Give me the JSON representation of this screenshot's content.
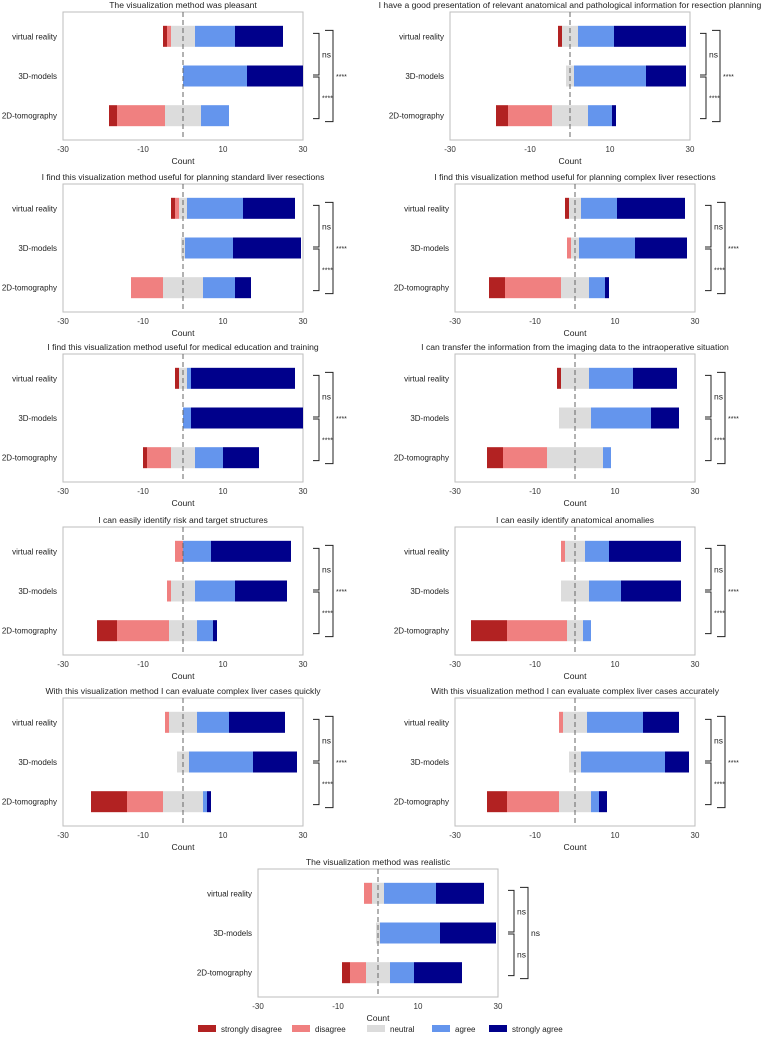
{
  "colors": {
    "strongly_disagree": "#b22222",
    "disagree": "#f08080",
    "neutral": "#dcdcdc",
    "agree": "#6495ed",
    "strongly_agree": "#00008b"
  },
  "legend": [
    {
      "key": "strongly_disagree",
      "label": "strongly disagree"
    },
    {
      "key": "disagree",
      "label": "disagree"
    },
    {
      "key": "neutral",
      "label": "neutral"
    },
    {
      "key": "agree",
      "label": "agree"
    },
    {
      "key": "strongly_agree",
      "label": "strongly agree"
    }
  ],
  "chart_data": [
    {
      "type": "bar",
      "stacked": "diverging",
      "orientation": "horizontal",
      "title": "The visualization method was pleasant",
      "xlabel": "Count",
      "xlim": [
        -30,
        30
      ],
      "xticks": [
        "-30",
        "-10",
        "10",
        "30"
      ],
      "categories": [
        "virtual reality",
        "3D-models",
        "2D-tomography"
      ],
      "series": [
        {
          "name": "strongly disagree",
          "values": [
            1,
            0,
            2
          ]
        },
        {
          "name": "disagree",
          "values": [
            1,
            0,
            12
          ]
        },
        {
          "name": "neutral",
          "values": [
            6,
            0,
            9
          ]
        },
        {
          "name": "agree",
          "values": [
            10,
            16,
            7
          ]
        },
        {
          "name": "strongly agree",
          "values": [
            12,
            14,
            0
          ]
        }
      ],
      "significance": [
        {
          "between": [
            "virtual reality",
            "3D-models"
          ],
          "label": "ns"
        },
        {
          "between": [
            "3D-models",
            "2D-tomography"
          ],
          "label": "****"
        },
        {
          "between": [
            "virtual reality",
            "2D-tomography"
          ],
          "label": "****"
        }
      ]
    },
    {
      "type": "bar",
      "stacked": "diverging",
      "orientation": "horizontal",
      "title": "I have a good presentation of relevant anatomical and pathological information for resection planning",
      "xlabel": "Count",
      "xlim": [
        -30,
        30
      ],
      "xticks": [
        "-30",
        "-10",
        "10",
        "30"
      ],
      "categories": [
        "virtual reality",
        "3D-models",
        "2D-tomography"
      ],
      "series": [
        {
          "name": "strongly disagree",
          "values": [
            1,
            0,
            3
          ]
        },
        {
          "name": "disagree",
          "values": [
            0,
            0,
            11
          ]
        },
        {
          "name": "neutral",
          "values": [
            4,
            2,
            9
          ]
        },
        {
          "name": "agree",
          "values": [
            9,
            18,
            6
          ]
        },
        {
          "name": "strongly agree",
          "values": [
            18,
            10,
            1
          ]
        }
      ],
      "significance": [
        {
          "between": [
            "virtual reality",
            "3D-models"
          ],
          "label": "ns"
        },
        {
          "between": [
            "3D-models",
            "2D-tomography"
          ],
          "label": "****"
        },
        {
          "between": [
            "virtual reality",
            "2D-tomography"
          ],
          "label": "****"
        }
      ]
    },
    {
      "type": "bar",
      "stacked": "diverging",
      "orientation": "horizontal",
      "title": "I find this visualization method useful for planning standard liver resections",
      "xlabel": "Count",
      "xlim": [
        -30,
        30
      ],
      "xticks": [
        "-30",
        "-10",
        "10",
        "30"
      ],
      "categories": [
        "virtual reality",
        "3D-models",
        "2D-tomography"
      ],
      "series": [
        {
          "name": "strongly disagree",
          "values": [
            1,
            0,
            0
          ]
        },
        {
          "name": "disagree",
          "values": [
            1,
            0,
            8
          ]
        },
        {
          "name": "neutral",
          "values": [
            2,
            1,
            10
          ]
        },
        {
          "name": "agree",
          "values": [
            14,
            12,
            8
          ]
        },
        {
          "name": "strongly agree",
          "values": [
            13,
            17,
            4
          ]
        }
      ],
      "significance": [
        {
          "between": [
            "virtual reality",
            "3D-models"
          ],
          "label": "ns"
        },
        {
          "between": [
            "3D-models",
            "2D-tomography"
          ],
          "label": "****"
        },
        {
          "between": [
            "virtual reality",
            "2D-tomography"
          ],
          "label": "****"
        }
      ]
    },
    {
      "type": "bar",
      "stacked": "diverging",
      "orientation": "horizontal",
      "title": "I find this visualization method useful for planning complex liver resections",
      "xlabel": "Count",
      "xlim": [
        -30,
        30
      ],
      "xticks": [
        "-30",
        "-10",
        "10",
        "30"
      ],
      "categories": [
        "virtual reality",
        "3D-models",
        "2D-tomography"
      ],
      "series": [
        {
          "name": "strongly disagree",
          "values": [
            1,
            0,
            4
          ]
        },
        {
          "name": "disagree",
          "values": [
            0,
            1,
            14
          ]
        },
        {
          "name": "neutral",
          "values": [
            3,
            2,
            7
          ]
        },
        {
          "name": "agree",
          "values": [
            9,
            14,
            4
          ]
        },
        {
          "name": "strongly agree",
          "values": [
            17,
            13,
            1
          ]
        }
      ],
      "significance": [
        {
          "between": [
            "virtual reality",
            "3D-models"
          ],
          "label": "ns"
        },
        {
          "between": [
            "3D-models",
            "2D-tomography"
          ],
          "label": "****"
        },
        {
          "between": [
            "virtual reality",
            "2D-tomography"
          ],
          "label": "****"
        }
      ]
    },
    {
      "type": "bar",
      "stacked": "diverging",
      "orientation": "horizontal",
      "title": "I find this visualization method useful for medical education and training",
      "xlabel": "Count",
      "xlim": [
        -30,
        30
      ],
      "xticks": [
        "-30",
        "-10",
        "10",
        "30"
      ],
      "categories": [
        "virtual reality",
        "3D-models",
        "2D-tomography"
      ],
      "series": [
        {
          "name": "strongly disagree",
          "values": [
            1,
            0,
            1
          ]
        },
        {
          "name": "disagree",
          "values": [
            0,
            0,
            6
          ]
        },
        {
          "name": "neutral",
          "values": [
            2,
            0,
            6
          ]
        },
        {
          "name": "agree",
          "values": [
            1,
            2,
            7
          ]
        },
        {
          "name": "strongly agree",
          "values": [
            26,
            28,
            9
          ]
        }
      ],
      "significance": [
        {
          "between": [
            "virtual reality",
            "3D-models"
          ],
          "label": "ns"
        },
        {
          "between": [
            "3D-models",
            "2D-tomography"
          ],
          "label": "****"
        },
        {
          "between": [
            "virtual reality",
            "2D-tomography"
          ],
          "label": "****"
        }
      ]
    },
    {
      "type": "bar",
      "stacked": "diverging",
      "orientation": "horizontal",
      "title": "I can transfer the information from the imaging data to the intraoperative situation",
      "xlabel": "Count",
      "xlim": [
        -30,
        30
      ],
      "xticks": [
        "-30",
        "-10",
        "10",
        "30"
      ],
      "categories": [
        "virtual reality",
        "3D-models",
        "2D-tomography"
      ],
      "series": [
        {
          "name": "strongly disagree",
          "values": [
            1,
            0,
            4
          ]
        },
        {
          "name": "disagree",
          "values": [
            0,
            0,
            11
          ]
        },
        {
          "name": "neutral",
          "values": [
            7,
            8,
            14
          ]
        },
        {
          "name": "agree",
          "values": [
            11,
            15,
            2
          ]
        },
        {
          "name": "strongly agree",
          "values": [
            11,
            7,
            0
          ]
        }
      ],
      "significance": [
        {
          "between": [
            "virtual reality",
            "3D-models"
          ],
          "label": "ns"
        },
        {
          "between": [
            "3D-models",
            "2D-tomography"
          ],
          "label": "****"
        },
        {
          "between": [
            "virtual reality",
            "2D-tomography"
          ],
          "label": "****"
        }
      ]
    },
    {
      "type": "bar",
      "stacked": "diverging",
      "orientation": "horizontal",
      "title": "I can easily identify risk and target structures",
      "xlabel": "Count",
      "xlim": [
        -30,
        30
      ],
      "xticks": [
        "-30",
        "-10",
        "10",
        "30"
      ],
      "categories": [
        "virtual reality",
        "3D-models",
        "2D-tomography"
      ],
      "series": [
        {
          "name": "strongly disagree",
          "values": [
            0,
            0,
            5
          ]
        },
        {
          "name": "disagree",
          "values": [
            2,
            1,
            13
          ]
        },
        {
          "name": "neutral",
          "values": [
            0,
            6,
            7
          ]
        },
        {
          "name": "agree",
          "values": [
            7,
            10,
            4
          ]
        },
        {
          "name": "strongly agree",
          "values": [
            20,
            13,
            1
          ]
        }
      ],
      "significance": [
        {
          "between": [
            "virtual reality",
            "3D-models"
          ],
          "label": "ns"
        },
        {
          "between": [
            "3D-models",
            "2D-tomography"
          ],
          "label": "****"
        },
        {
          "between": [
            "virtual reality",
            "2D-tomography"
          ],
          "label": "****"
        }
      ]
    },
    {
      "type": "bar",
      "stacked": "diverging",
      "orientation": "horizontal",
      "title": "I can easily identify anatomical anomalies",
      "xlabel": "Count",
      "xlim": [
        -30,
        30
      ],
      "xticks": [
        "-30",
        "-10",
        "10",
        "30"
      ],
      "categories": [
        "virtual reality",
        "3D-models",
        "2D-tomography"
      ],
      "series": [
        {
          "name": "strongly disagree",
          "values": [
            0,
            0,
            9
          ]
        },
        {
          "name": "disagree",
          "values": [
            1,
            0,
            15
          ]
        },
        {
          "name": "neutral",
          "values": [
            5,
            7,
            4
          ]
        },
        {
          "name": "agree",
          "values": [
            6,
            8,
            2
          ]
        },
        {
          "name": "strongly agree",
          "values": [
            18,
            15,
            0
          ]
        }
      ],
      "significance": [
        {
          "between": [
            "virtual reality",
            "3D-models"
          ],
          "label": "ns"
        },
        {
          "between": [
            "3D-models",
            "2D-tomography"
          ],
          "label": "****"
        },
        {
          "between": [
            "virtual reality",
            "2D-tomography"
          ],
          "label": "****"
        }
      ]
    },
    {
      "type": "bar",
      "stacked": "diverging",
      "orientation": "horizontal",
      "title": "With this visualization method I can evaluate complex liver cases quickly",
      "xlabel": "Count",
      "xlim": [
        -30,
        30
      ],
      "xticks": [
        "-30",
        "-10",
        "10",
        "30"
      ],
      "categories": [
        "virtual reality",
        "3D-models",
        "2D-tomography"
      ],
      "series": [
        {
          "name": "strongly disagree",
          "values": [
            0,
            0,
            9
          ]
        },
        {
          "name": "disagree",
          "values": [
            1,
            0,
            9
          ]
        },
        {
          "name": "neutral",
          "values": [
            7,
            3,
            10
          ]
        },
        {
          "name": "agree",
          "values": [
            8,
            16,
            1
          ]
        },
        {
          "name": "strongly agree",
          "values": [
            14,
            11,
            1
          ]
        }
      ],
      "significance": [
        {
          "between": [
            "virtual reality",
            "3D-models"
          ],
          "label": "ns"
        },
        {
          "between": [
            "3D-models",
            "2D-tomography"
          ],
          "label": "****"
        },
        {
          "between": [
            "virtual reality",
            "2D-tomography"
          ],
          "label": "****"
        }
      ]
    },
    {
      "type": "bar",
      "stacked": "diverging",
      "orientation": "horizontal",
      "title": "With this visualization method I can evaluate complex liver cases accurately",
      "xlabel": "Count",
      "xlim": [
        -30,
        30
      ],
      "xticks": [
        "-30",
        "-10",
        "10",
        "30"
      ],
      "categories": [
        "virtual reality",
        "3D-models",
        "2D-tomography"
      ],
      "series": [
        {
          "name": "strongly disagree",
          "values": [
            0,
            0,
            5
          ]
        },
        {
          "name": "disagree",
          "values": [
            1,
            0,
            13
          ]
        },
        {
          "name": "neutral",
          "values": [
            6,
            3,
            8
          ]
        },
        {
          "name": "agree",
          "values": [
            14,
            21,
            2
          ]
        },
        {
          "name": "strongly agree",
          "values": [
            9,
            6,
            2
          ]
        }
      ],
      "significance": [
        {
          "between": [
            "virtual reality",
            "3D-models"
          ],
          "label": "ns"
        },
        {
          "between": [
            "3D-models",
            "2D-tomography"
          ],
          "label": "****"
        },
        {
          "between": [
            "virtual reality",
            "2D-tomography"
          ],
          "label": "****"
        }
      ]
    },
    {
      "type": "bar",
      "stacked": "diverging",
      "orientation": "horizontal",
      "title": "The visualization method was realistic",
      "xlabel": "Count",
      "xlim": [
        -30,
        30
      ],
      "xticks": [
        "-30",
        "-10",
        "10",
        "30"
      ],
      "categories": [
        "virtual reality",
        "3D-models",
        "2D-tomography"
      ],
      "series": [
        {
          "name": "strongly disagree",
          "values": [
            0,
            0,
            2
          ]
        },
        {
          "name": "disagree",
          "values": [
            2,
            0,
            4
          ]
        },
        {
          "name": "neutral",
          "values": [
            3,
            1,
            6
          ]
        },
        {
          "name": "agree",
          "values": [
            13,
            15,
            6
          ]
        },
        {
          "name": "strongly agree",
          "values": [
            12,
            14,
            12
          ]
        }
      ],
      "significance": [
        {
          "between": [
            "virtual reality",
            "3D-models"
          ],
          "label": "ns"
        },
        {
          "between": [
            "3D-models",
            "2D-tomography"
          ],
          "label": "ns"
        },
        {
          "between": [
            "virtual reality",
            "2D-tomography"
          ],
          "label": "ns"
        }
      ]
    }
  ]
}
